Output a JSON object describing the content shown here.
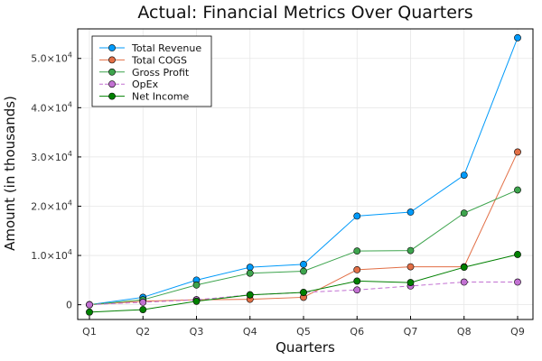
{
  "chart_data": {
    "type": "line",
    "title": "Actual: Financial Metrics Over Quarters",
    "xlabel": "Quarters",
    "ylabel": "Amount (in thousands)",
    "categories": [
      "Q1",
      "Q2",
      "Q3",
      "Q4",
      "Q5",
      "Q6",
      "Q7",
      "Q8",
      "Q9"
    ],
    "ylim": [
      -3000,
      56000
    ],
    "yticks": [
      {
        "value": 0,
        "mantissa": "0",
        "exponent": ""
      },
      {
        "value": 10000,
        "mantissa": "1.0×10",
        "exponent": "4"
      },
      {
        "value": 20000,
        "mantissa": "2.0×10",
        "exponent": "4"
      },
      {
        "value": 30000,
        "mantissa": "3.0×10",
        "exponent": "4"
      },
      {
        "value": 40000,
        "mantissa": "4.0×10",
        "exponent": "4"
      },
      {
        "value": 50000,
        "mantissa": "5.0×10",
        "exponent": "4"
      }
    ],
    "grid": true,
    "legend_position": "top-left",
    "series": [
      {
        "name": "Total Revenue",
        "color": "#009AFA",
        "dashed": false,
        "values": [
          0,
          1500,
          5000,
          7600,
          8200,
          18000,
          18800,
          26300,
          54200
        ]
      },
      {
        "name": "Total COGS",
        "color": "#E26F46",
        "dashed": false,
        "values": [
          0,
          700,
          1000,
          1100,
          1500,
          7100,
          7700,
          7700,
          31000
        ]
      },
      {
        "name": "Gross Profit",
        "color": "#3DA44D",
        "dashed": false,
        "values": [
          0,
          1000,
          4000,
          6400,
          6800,
          10900,
          11000,
          18600,
          23300
        ]
      },
      {
        "name": "OpEx",
        "color": "#C271D2",
        "dashed": true,
        "values": [
          0,
          500,
          1000,
          2000,
          2500,
          3000,
          3800,
          4600,
          4600
        ]
      },
      {
        "name": "Net Income",
        "color": "#008000",
        "dashed": false,
        "values": [
          -1500,
          -1000,
          700,
          2000,
          2500,
          4800,
          4500,
          7600,
          10200
        ]
      }
    ]
  }
}
